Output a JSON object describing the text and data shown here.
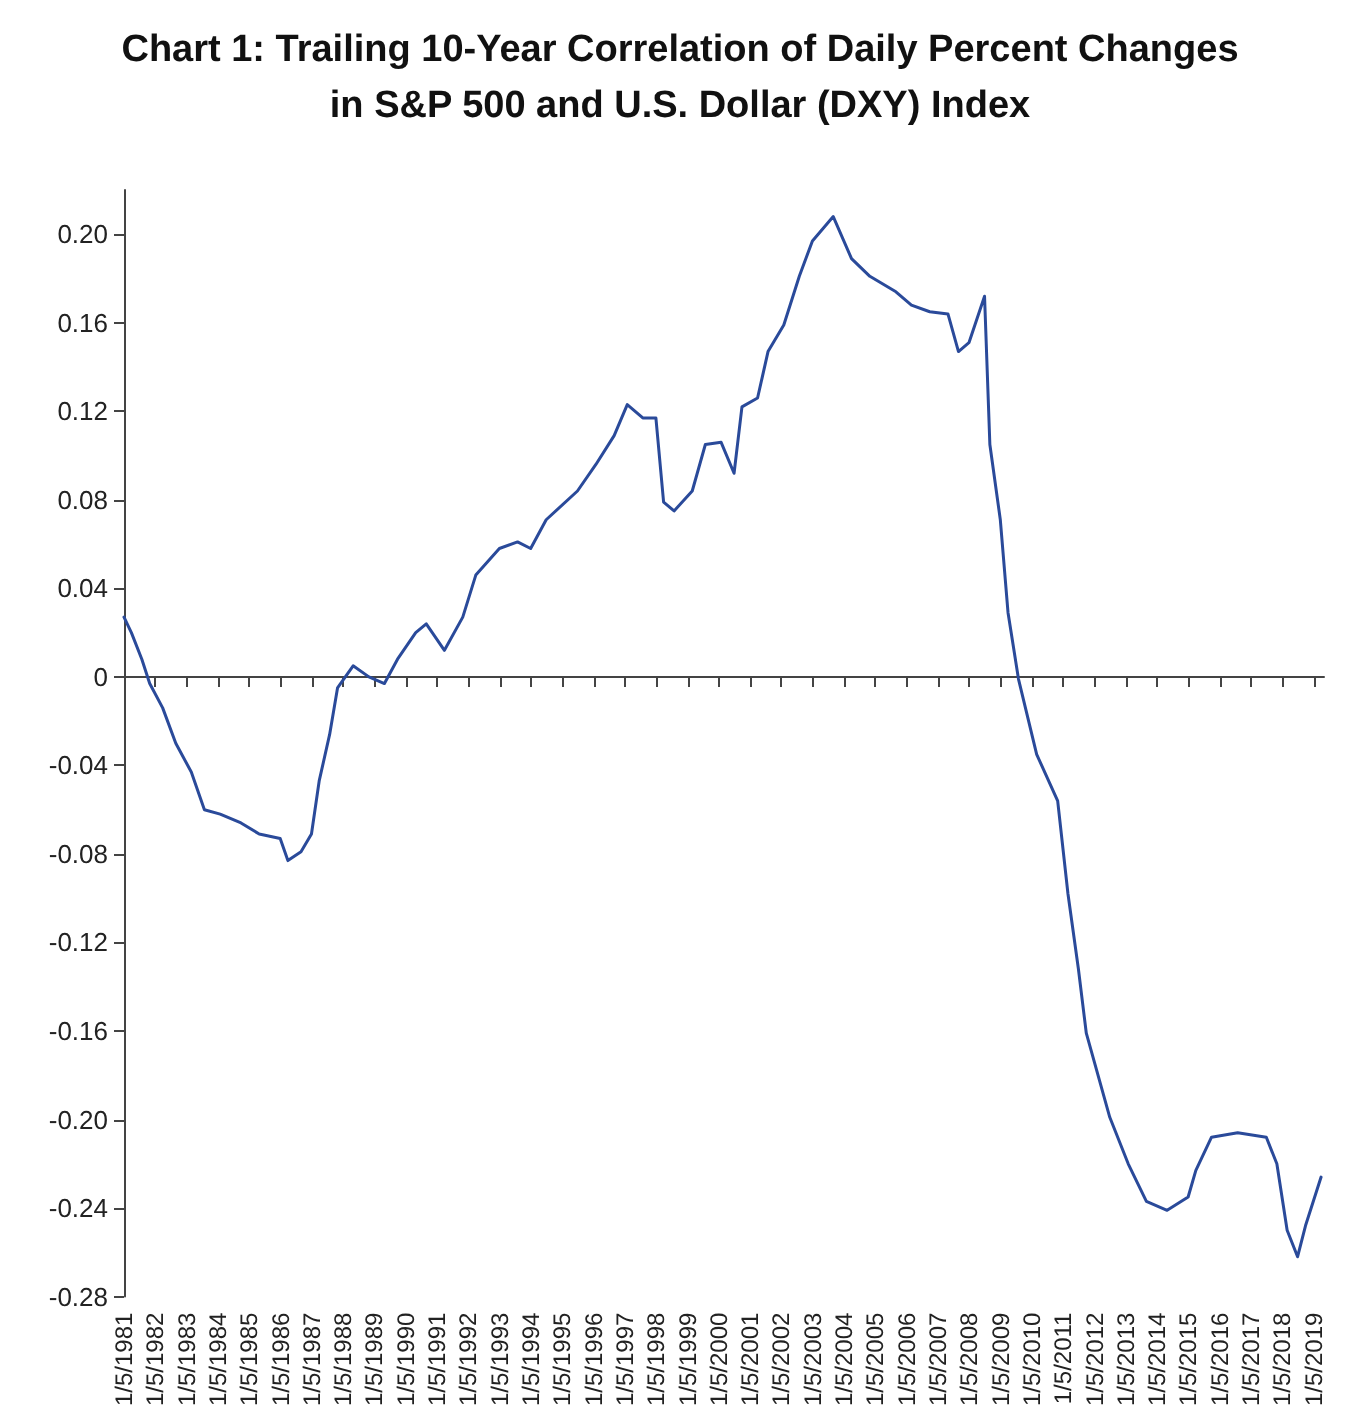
{
  "chart_data": {
    "type": "line",
    "title": "Chart 1: Trailing 10-Year Correlation of Daily Percent Changes\nin S&P 500 and U.S. Dollar (DXY) Index",
    "x": [
      "1981-01-05",
      "1981-04",
      "1981-08",
      "1981-11",
      "1982-04",
      "1982-09",
      "1983-03",
      "1983-08",
      "1984-02",
      "1984-10",
      "1985-05",
      "1986-01",
      "1986-04",
      "1986-09",
      "1987-01",
      "1987-04",
      "1987-08",
      "1987-11",
      "1988-05",
      "1988-11",
      "1989-05",
      "1989-10",
      "1990-05",
      "1990-09",
      "1991-04",
      "1991-11",
      "1992-04",
      "1993-01",
      "1993-08",
      "1994-01",
      "1994-07",
      "1995-07",
      "1996-02",
      "1996-09",
      "1997-02",
      "1997-08",
      "1998-01",
      "1998-04",
      "1998-08",
      "1999-03",
      "1999-08",
      "2000-02",
      "2000-07",
      "2000-10",
      "2001-04",
      "2001-08",
      "2002-02",
      "2002-08",
      "2003-01",
      "2003-09",
      "2004-04",
      "2004-11",
      "2005-09",
      "2006-03",
      "2006-10",
      "2007-05",
      "2007-09",
      "2008-01",
      "2008-07",
      "2008-09",
      "2009-01",
      "2009-04",
      "2009-08",
      "2010-03",
      "2010-11",
      "2011-03",
      "2011-07",
      "2011-10",
      "2012-07",
      "2013-02",
      "2013-09",
      "2014-05",
      "2015-01",
      "2015-04",
      "2015-10",
      "2016-08",
      "2017-07",
      "2017-11",
      "2018-03",
      "2018-07",
      "2018-10",
      "2019-04"
    ],
    "series": [
      {
        "color": "#2a4a9a",
        "values": [
          0.027,
          0.02,
          0.008,
          -0.003,
          -0.014,
          -0.03,
          -0.043,
          -0.06,
          -0.062,
          -0.066,
          -0.071,
          -0.073,
          -0.083,
          -0.079,
          -0.071,
          -0.047,
          -0.026,
          -0.005,
          0.005,
          0.0,
          -0.003,
          0.008,
          0.02,
          0.024,
          0.012,
          0.027,
          0.046,
          0.058,
          0.061,
          0.058,
          0.071,
          0.084,
          0.096,
          0.109,
          0.123,
          0.117,
          0.117,
          0.079,
          0.075,
          0.084,
          0.105,
          0.106,
          0.092,
          0.122,
          0.126,
          0.147,
          0.159,
          0.181,
          0.197,
          0.208,
          0.189,
          0.181,
          0.174,
          0.168,
          0.165,
          0.164,
          0.147,
          0.151,
          0.172,
          0.105,
          0.071,
          0.029,
          -0.001,
          -0.035,
          -0.056,
          -0.098,
          -0.132,
          -0.161,
          -0.199,
          -0.22,
          -0.237,
          -0.241,
          -0.235,
          -0.223,
          -0.208,
          -0.206,
          -0.208,
          -0.22,
          -0.25,
          -0.262,
          -0.248,
          -0.226
        ]
      }
    ],
    "xlim": [
      "1981-01-05",
      "2019-05-05"
    ],
    "xticks": [
      {
        "value": "1981-01-05",
        "label": "1/5/1981"
      },
      {
        "value": "1982-01-05",
        "label": "1/5/1982"
      },
      {
        "value": "1983-01-05",
        "label": "1/5/1983"
      },
      {
        "value": "1984-01-05",
        "label": "1/5/1984"
      },
      {
        "value": "1985-01-05",
        "label": "1/5/1985"
      },
      {
        "value": "1986-01-05",
        "label": "1/5/1986"
      },
      {
        "value": "1987-01-05",
        "label": "1/5/1987"
      },
      {
        "value": "1988-01-05",
        "label": "1/5/1988"
      },
      {
        "value": "1989-01-05",
        "label": "1/5/1989"
      },
      {
        "value": "1990-01-05",
        "label": "1/5/1990"
      },
      {
        "value": "1991-01-05",
        "label": "1/5/1991"
      },
      {
        "value": "1992-01-05",
        "label": "1/5/1992"
      },
      {
        "value": "1993-01-05",
        "label": "1/5/1993"
      },
      {
        "value": "1994-01-05",
        "label": "1/5/1994"
      },
      {
        "value": "1995-01-05",
        "label": "1/5/1995"
      },
      {
        "value": "1996-01-05",
        "label": "1/5/1996"
      },
      {
        "value": "1997-01-05",
        "label": "1/5/1997"
      },
      {
        "value": "1998-01-05",
        "label": "1/5/1998"
      },
      {
        "value": "1999-01-05",
        "label": "1/5/1999"
      },
      {
        "value": "2000-01-05",
        "label": "1/5/2000"
      },
      {
        "value": "2001-01-05",
        "label": "1/5/2001"
      },
      {
        "value": "2002-01-05",
        "label": "1/5/2002"
      },
      {
        "value": "2003-01-05",
        "label": "1/5/2003"
      },
      {
        "value": "2004-01-05",
        "label": "1/5/2004"
      },
      {
        "value": "2005-01-05",
        "label": "1/5/2005"
      },
      {
        "value": "2006-01-05",
        "label": "1/5/2006"
      },
      {
        "value": "2007-01-05",
        "label": "1/5/2007"
      },
      {
        "value": "2008-01-05",
        "label": "1/5/2008"
      },
      {
        "value": "2009-01-05",
        "label": "1/5/2009"
      },
      {
        "value": "2010-01-05",
        "label": "1/5/2010"
      },
      {
        "value": "2011-01-05",
        "label": "1/5/2011"
      },
      {
        "value": "2012-01-05",
        "label": "1/5/2012"
      },
      {
        "value": "2013-01-05",
        "label": "1/5/2013"
      },
      {
        "value": "2014-01-05",
        "label": "1/5/2014"
      },
      {
        "value": "2015-01-05",
        "label": "1/5/2015"
      },
      {
        "value": "2016-01-05",
        "label": "1/5/2016"
      },
      {
        "value": "2017-01-05",
        "label": "1/5/2017"
      },
      {
        "value": "2018-01-05",
        "label": "1/5/2018"
      },
      {
        "value": "2019-01-05",
        "label": "1/5/2019"
      }
    ],
    "ylim": [
      -0.28,
      0.22
    ],
    "yticks": [
      {
        "value": -0.28,
        "label": "-0.28"
      },
      {
        "value": -0.24,
        "label": "-0.24"
      },
      {
        "value": -0.2,
        "label": "-0.20"
      },
      {
        "value": -0.16,
        "label": "-0.16"
      },
      {
        "value": -0.12,
        "label": "-0.12"
      },
      {
        "value": -0.08,
        "label": "-0.08"
      },
      {
        "value": -0.04,
        "label": "-0.04"
      },
      {
        "value": 0,
        "label": "0"
      },
      {
        "value": 0.04,
        "label": "0.04"
      },
      {
        "value": 0.08,
        "label": "0.08"
      },
      {
        "value": 0.12,
        "label": "0.12"
      },
      {
        "value": 0.16,
        "label": "0.16"
      },
      {
        "value": 0.2,
        "label": "0.20"
      }
    ],
    "marker": "none",
    "line_style": "solid"
  }
}
